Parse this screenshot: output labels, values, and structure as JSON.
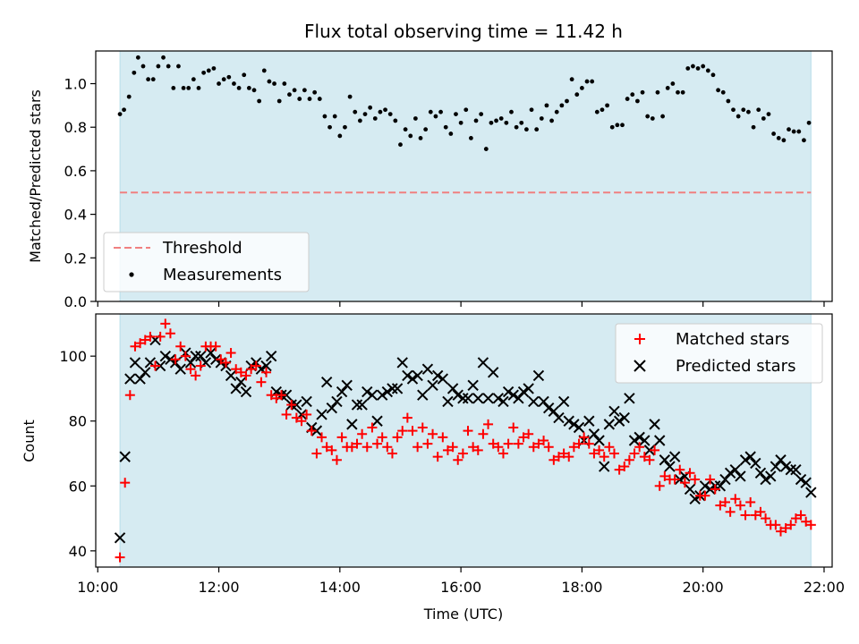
{
  "chart_data": [
    {
      "type": "scatter",
      "title": "Flux total observing time = 11.42 h",
      "xlabel": "",
      "ylabel": "Matched/Predicted stars",
      "xlim": [
        "10:00",
        "22:00"
      ],
      "ylim": [
        0,
        1.15
      ],
      "yticks": [
        "0.0",
        "0.2",
        "0.4",
        "0.6",
        "0.8",
        "1.0"
      ],
      "shaded_interval": [
        "10:22",
        "21:47"
      ],
      "threshold": 0.5,
      "legend": {
        "position": "lower-left",
        "entries": [
          "Threshold",
          "Measurements"
        ]
      },
      "series": [
        {
          "name": "Measurements",
          "x": [
            "10:22",
            "10:26",
            "10:31",
            "10:36",
            "10:40",
            "10:45",
            "10:50",
            "10:55",
            "11:00",
            "11:05",
            "11:10",
            "11:15",
            "11:20",
            "11:25",
            "11:30",
            "11:35",
            "11:40",
            "11:45",
            "11:50",
            "11:55",
            "12:00",
            "12:05",
            "12:10",
            "12:15",
            "12:20",
            "12:25",
            "12:30",
            "12:35",
            "12:40",
            "12:45",
            "12:50",
            "12:55",
            "13:00",
            "13:05",
            "13:10",
            "13:15",
            "13:20",
            "13:25",
            "13:30",
            "13:35",
            "13:40",
            "13:45",
            "13:50",
            "13:55",
            "14:00",
            "14:05",
            "14:10",
            "14:15",
            "14:20",
            "14:25",
            "14:30",
            "14:35",
            "14:40",
            "14:45",
            "14:50",
            "14:55",
            "15:00",
            "15:05",
            "15:10",
            "15:15",
            "15:20",
            "15:25",
            "15:30",
            "15:35",
            "15:40",
            "15:45",
            "15:50",
            "15:55",
            "16:00",
            "16:05",
            "16:10",
            "16:15",
            "16:20",
            "16:25",
            "16:30",
            "16:35",
            "16:40",
            "16:45",
            "16:50",
            "16:55",
            "17:00",
            "17:05",
            "17:10",
            "17:15",
            "17:20",
            "17:25",
            "17:30",
            "17:35",
            "17:40",
            "17:45",
            "17:50",
            "17:55",
            "18:00",
            "18:05",
            "18:10",
            "18:15",
            "18:20",
            "18:25",
            "18:30",
            "18:35",
            "18:40",
            "18:45",
            "18:50",
            "18:55",
            "19:00",
            "19:05",
            "19:10",
            "19:15",
            "19:20",
            "19:25",
            "19:30",
            "19:35",
            "19:40",
            "19:45",
            "19:50",
            "19:55",
            "20:00",
            "20:05",
            "20:10",
            "20:15",
            "20:20",
            "20:25",
            "20:30",
            "20:35",
            "20:40",
            "20:45",
            "20:50",
            "20:55",
            "21:00",
            "21:05",
            "21:10",
            "21:15",
            "21:20",
            "21:25",
            "21:30",
            "21:35",
            "21:40",
            "21:45"
          ],
          "values": [
            0.86,
            0.88,
            0.94,
            1.05,
            1.12,
            1.08,
            1.02,
            1.02,
            1.08,
            1.12,
            1.08,
            0.98,
            1.08,
            0.98,
            0.98,
            1.02,
            0.98,
            1.05,
            1.06,
            1.07,
            1.0,
            1.02,
            1.03,
            1.0,
            0.98,
            1.04,
            0.98,
            0.97,
            0.92,
            1.06,
            1.01,
            1.0,
            0.92,
            1.0,
            0.95,
            0.97,
            0.93,
            0.97,
            0.93,
            0.96,
            0.93,
            0.85,
            0.8,
            0.85,
            0.76,
            0.8,
            0.94,
            0.87,
            0.83,
            0.86,
            0.89,
            0.84,
            0.87,
            0.88,
            0.86,
            0.83,
            0.72,
            0.79,
            0.76,
            0.84,
            0.75,
            0.79,
            0.87,
            0.85,
            0.87,
            0.8,
            0.77,
            0.86,
            0.82,
            0.88,
            0.75,
            0.83,
            0.86,
            0.7,
            0.82,
            0.83,
            0.84,
            0.82,
            0.87,
            0.8,
            0.82,
            0.79,
            0.88,
            0.79,
            0.84,
            0.9,
            0.83,
            0.87,
            0.9,
            0.92,
            1.02,
            0.95,
            0.98,
            1.01,
            1.01,
            0.87,
            0.88,
            0.9,
            0.8,
            0.81,
            0.81,
            0.93,
            0.95,
            0.92,
            0.96,
            0.85,
            0.84,
            0.96,
            0.85,
            0.98,
            1.0,
            0.96,
            0.96,
            1.07,
            1.08,
            1.07,
            1.08,
            1.06,
            1.04,
            0.97,
            0.96,
            0.92,
            0.88,
            0.85,
            0.88,
            0.87,
            0.8,
            0.88,
            0.84,
            0.86,
            0.77,
            0.75,
            0.74,
            0.79,
            0.78,
            0.78,
            0.74,
            0.82
          ]
        }
      ]
    },
    {
      "type": "scatter",
      "title": "",
      "xlabel": "Time (UTC)",
      "ylabel": "Count",
      "xlim": [
        "10:00",
        "22:00"
      ],
      "ylim": [
        35,
        113
      ],
      "yticks": [
        "40",
        "60",
        "80",
        "100"
      ],
      "xticks": [
        "10:00",
        "12:00",
        "14:00",
        "16:00",
        "18:00",
        "20:00",
        "22:00"
      ],
      "shaded_interval": [
        "10:22",
        "21:47"
      ],
      "legend": {
        "position": "upper-right",
        "entries": [
          "Matched stars",
          "Predicted stars"
        ]
      },
      "series": [
        {
          "name": "Matched stars",
          "x": [
            "10:22",
            "10:27",
            "10:32",
            "10:37",
            "10:42",
            "10:47",
            "10:52",
            "10:57",
            "11:02",
            "11:07",
            "11:12",
            "11:17",
            "11:22",
            "11:27",
            "11:32",
            "11:37",
            "11:42",
            "11:47",
            "11:52",
            "11:57",
            "12:02",
            "12:07",
            "12:12",
            "12:17",
            "12:22",
            "12:27",
            "12:32",
            "12:37",
            "12:42",
            "12:47",
            "12:52",
            "12:57",
            "13:02",
            "13:07",
            "13:12",
            "13:17",
            "13:22",
            "13:27",
            "13:32",
            "13:37",
            "13:42",
            "13:47",
            "13:52",
            "13:57",
            "14:02",
            "14:07",
            "14:12",
            "14:17",
            "14:22",
            "14:27",
            "14:32",
            "14:37",
            "14:42",
            "14:47",
            "14:52",
            "14:57",
            "15:02",
            "15:07",
            "15:12",
            "15:17",
            "15:22",
            "15:27",
            "15:32",
            "15:37",
            "15:42",
            "15:47",
            "15:52",
            "15:57",
            "16:02",
            "16:07",
            "16:12",
            "16:17",
            "16:22",
            "16:27",
            "16:32",
            "16:37",
            "16:42",
            "16:47",
            "16:52",
            "16:57",
            "17:02",
            "17:07",
            "17:12",
            "17:17",
            "17:22",
            "17:27",
            "17:32",
            "17:37",
            "17:42",
            "17:47",
            "17:52",
            "17:57",
            "18:02",
            "18:07",
            "18:12",
            "18:17",
            "18:22",
            "18:27",
            "18:32",
            "18:37",
            "18:42",
            "18:47",
            "18:52",
            "18:57",
            "19:02",
            "19:07",
            "19:12",
            "19:17",
            "19:22",
            "19:27",
            "19:32",
            "19:37",
            "19:42",
            "19:47",
            "19:52",
            "19:57",
            "20:02",
            "20:07",
            "20:12",
            "20:17",
            "20:22",
            "20:27",
            "20:32",
            "20:37",
            "20:42",
            "20:47",
            "20:52",
            "20:57",
            "21:02",
            "21:07",
            "21:12",
            "21:17",
            "21:22",
            "21:27",
            "21:32",
            "21:37",
            "21:42",
            "21:47"
          ],
          "values": [
            38,
            61,
            88,
            103,
            104,
            105,
            106,
            97,
            106,
            110,
            107,
            99,
            103,
            100,
            96,
            94,
            97,
            103,
            103,
            103,
            99,
            98,
            101,
            96,
            95,
            94,
            96,
            97,
            92,
            95,
            88,
            87,
            88,
            82,
            85,
            81,
            80,
            82,
            77,
            70,
            75,
            72,
            71,
            68,
            75,
            72,
            72,
            73,
            76,
            72,
            78,
            73,
            75,
            72,
            70,
            75,
            77,
            81,
            77,
            72,
            78,
            73,
            76,
            69,
            75,
            71,
            72,
            68,
            70,
            77,
            72,
            71,
            76,
            79,
            73,
            72,
            70,
            73,
            78,
            73,
            75,
            76,
            72,
            73,
            74,
            72,
            68,
            69,
            70,
            69,
            72,
            73,
            75,
            73,
            70,
            71,
            69,
            72,
            70,
            65,
            66,
            68,
            70,
            72,
            69,
            68,
            71,
            60,
            63,
            62,
            62,
            65,
            61,
            64,
            62,
            57,
            57,
            62,
            59,
            54,
            55,
            52,
            56,
            54,
            51,
            55,
            51,
            52,
            50,
            48,
            48,
            46,
            47,
            48,
            50,
            51,
            49,
            48
          ]
        },
        {
          "name": "Predicted stars",
          "x": [
            "10:22",
            "10:27",
            "10:32",
            "10:37",
            "10:42",
            "10:47",
            "10:52",
            "10:57",
            "11:02",
            "11:07",
            "11:12",
            "11:17",
            "11:22",
            "11:27",
            "11:32",
            "11:37",
            "11:42",
            "11:47",
            "11:52",
            "11:57",
            "12:02",
            "12:07",
            "12:12",
            "12:17",
            "12:22",
            "12:27",
            "12:32",
            "12:37",
            "12:42",
            "12:47",
            "12:52",
            "12:57",
            "13:02",
            "13:07",
            "13:12",
            "13:17",
            "13:22",
            "13:27",
            "13:32",
            "13:37",
            "13:42",
            "13:47",
            "13:52",
            "13:57",
            "14:02",
            "14:07",
            "14:12",
            "14:17",
            "14:22",
            "14:27",
            "14:32",
            "14:37",
            "14:42",
            "14:47",
            "14:52",
            "14:57",
            "15:02",
            "15:07",
            "15:12",
            "15:17",
            "15:22",
            "15:27",
            "15:32",
            "15:37",
            "15:42",
            "15:47",
            "15:52",
            "15:57",
            "16:02",
            "16:07",
            "16:12",
            "16:17",
            "16:22",
            "16:27",
            "16:32",
            "16:37",
            "16:42",
            "16:47",
            "16:52",
            "16:57",
            "17:02",
            "17:07",
            "17:12",
            "17:17",
            "17:22",
            "17:27",
            "17:32",
            "17:37",
            "17:42",
            "17:47",
            "17:52",
            "17:57",
            "18:02",
            "18:07",
            "18:12",
            "18:17",
            "18:22",
            "18:27",
            "18:32",
            "18:37",
            "18:42",
            "18:47",
            "18:52",
            "18:57",
            "19:02",
            "19:07",
            "19:12",
            "19:17",
            "19:22",
            "19:27",
            "19:32",
            "19:37",
            "19:42",
            "19:47",
            "19:52",
            "19:57",
            "20:02",
            "20:07",
            "20:12",
            "20:17",
            "20:22",
            "20:27",
            "20:32",
            "20:37",
            "20:42",
            "20:47",
            "20:52",
            "20:57",
            "21:02",
            "21:07",
            "21:12",
            "21:17",
            "21:22",
            "21:27",
            "21:32",
            "21:37",
            "21:42",
            "21:47"
          ],
          "values": [
            44,
            69,
            93,
            98,
            93,
            95,
            98,
            105,
            97,
            100,
            99,
            98,
            96,
            101,
            98,
            100,
            100,
            98,
            101,
            99,
            98,
            97,
            94,
            90,
            92,
            89,
            97,
            98,
            96,
            97,
            100,
            89,
            88,
            88,
            85,
            85,
            82,
            86,
            78,
            77,
            82,
            92,
            84,
            86,
            89,
            91,
            79,
            85,
            85,
            89,
            88,
            80,
            88,
            89,
            90,
            90,
            98,
            94,
            93,
            94,
            88,
            96,
            91,
            94,
            93,
            86,
            90,
            88,
            87,
            87,
            91,
            87,
            98,
            87,
            95,
            87,
            86,
            89,
            88,
            87,
            89,
            90,
            86,
            94,
            86,
            84,
            83,
            81,
            86,
            80,
            79,
            78,
            74,
            80,
            76,
            74,
            66,
            79,
            83,
            80,
            81,
            87,
            74,
            75,
            74,
            71,
            79,
            74,
            68,
            66,
            69,
            62,
            63,
            59,
            56,
            57,
            60,
            59,
            60,
            60,
            62,
            64,
            65,
            63,
            68,
            69,
            67,
            64,
            62,
            63,
            66,
            68,
            66,
            65,
            65,
            62,
            61,
            58
          ]
        }
      ]
    }
  ]
}
